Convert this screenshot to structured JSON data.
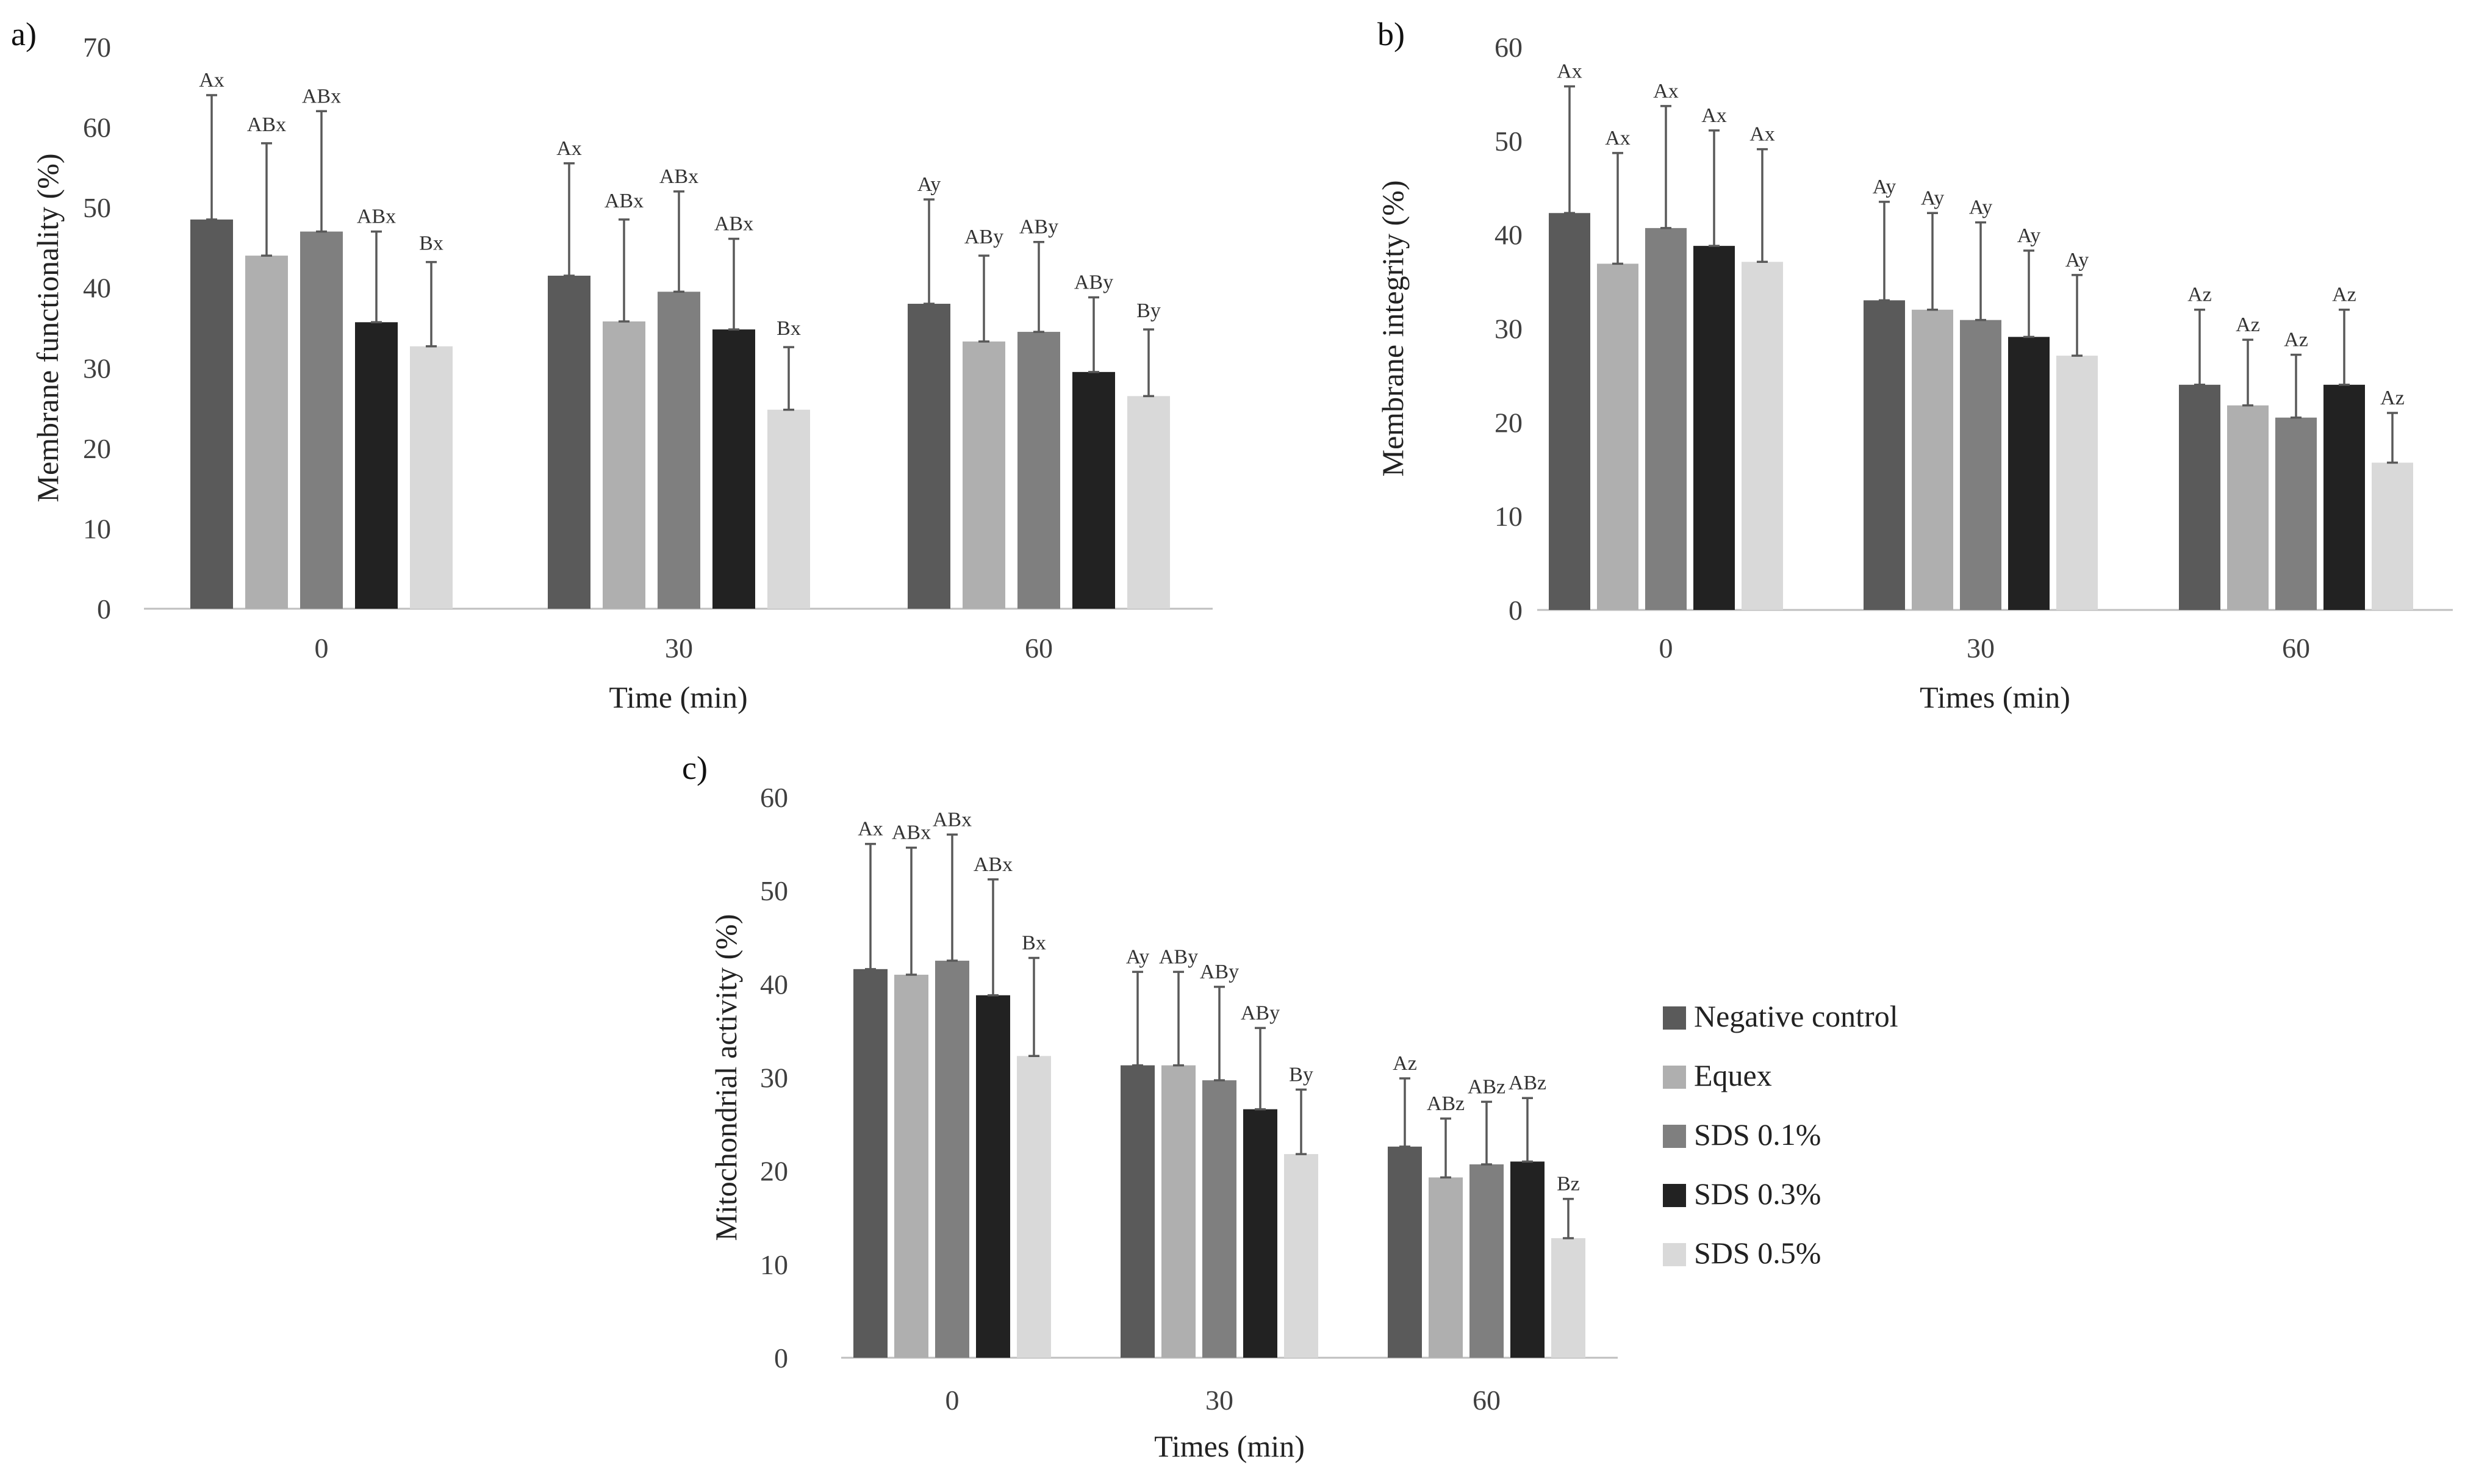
{
  "series_colors": [
    "#5a5a5a",
    "#afafaf",
    "#7f7f7f",
    "#222222",
    "#d9d9d9"
  ],
  "legend": [
    "Negative control",
    "Equex",
    "SDS 0.1%",
    "SDS 0.3%",
    "SDS 0.5%"
  ],
  "chart_data": [
    {
      "panel": "a)",
      "type": "bar",
      "xlabel": "Time (min)",
      "ylabel": "Membrane functionality (%)",
      "ylim": [
        0,
        70
      ],
      "yticks": [
        0,
        10,
        20,
        30,
        40,
        50,
        60,
        70
      ],
      "categories": [
        "0",
        "30",
        "60"
      ],
      "series": [
        {
          "name": "Negative control",
          "values": [
            48.5,
            41.5,
            38.0
          ],
          "errors": [
            15.5,
            14.0,
            13.0
          ],
          "labels": [
            "Ax",
            "Ax",
            "Ay"
          ]
        },
        {
          "name": "Equex",
          "values": [
            44.0,
            35.8,
            33.3
          ],
          "errors": [
            14.0,
            12.7,
            10.7
          ],
          "labels": [
            "ABx",
            "ABx",
            "ABy"
          ]
        },
        {
          "name": "SDS 0.1%",
          "values": [
            47.0,
            39.5,
            34.5
          ],
          "errors": [
            15.0,
            12.5,
            11.2
          ],
          "labels": [
            "ABx",
            "ABx",
            "ABy"
          ]
        },
        {
          "name": "SDS 0.3%",
          "values": [
            35.7,
            34.8,
            29.5
          ],
          "errors": [
            11.3,
            11.3,
            9.3
          ],
          "labels": [
            "ABx",
            "ABx",
            "ABy"
          ]
        },
        {
          "name": "SDS 0.5%",
          "values": [
            32.7,
            24.8,
            26.5
          ],
          "errors": [
            10.5,
            7.8,
            8.3
          ],
          "labels": [
            "Bx",
            "Bx",
            "By"
          ]
        }
      ]
    },
    {
      "panel": "b)",
      "type": "bar",
      "xlabel": "Times (min)",
      "ylabel": "Membrane integrity (%)",
      "ylim": [
        0,
        60
      ],
      "yticks": [
        0,
        10,
        20,
        30,
        40,
        50,
        60
      ],
      "categories": [
        "0",
        "30",
        "60"
      ],
      "series": [
        {
          "name": "Negative control",
          "values": [
            42.3,
            33.0,
            24.0
          ],
          "errors": [
            13.5,
            10.5,
            8.0
          ],
          "labels": [
            "Ax",
            "Ay",
            "Az"
          ]
        },
        {
          "name": "Equex",
          "values": [
            36.9,
            32.0,
            21.8
          ],
          "errors": [
            11.8,
            10.3,
            7.0
          ],
          "labels": [
            "Ax",
            "Ay",
            "Az"
          ]
        },
        {
          "name": "SDS 0.1%",
          "values": [
            40.7,
            30.9,
            20.5
          ],
          "errors": [
            13.0,
            10.4,
            6.7
          ],
          "labels": [
            "Ax",
            "Ay",
            "Az"
          ]
        },
        {
          "name": "SDS 0.3%",
          "values": [
            38.8,
            29.1,
            24.0
          ],
          "errors": [
            12.3,
            9.2,
            8.0
          ],
          "labels": [
            "Ax",
            "Ay",
            "Az"
          ]
        },
        {
          "name": "SDS 0.5%",
          "values": [
            37.1,
            27.1,
            15.7
          ],
          "errors": [
            12.0,
            8.6,
            5.3
          ],
          "labels": [
            "Ax",
            "Ay",
            "Az"
          ]
        }
      ]
    },
    {
      "panel": "c)",
      "type": "bar",
      "xlabel": "Times (min)",
      "ylabel": "Mitochondrial activity (%)",
      "ylim": [
        0,
        60
      ],
      "yticks": [
        0,
        10,
        20,
        30,
        40,
        50,
        60
      ],
      "categories": [
        "0",
        "30",
        "60"
      ],
      "series": [
        {
          "name": "Negative control",
          "values": [
            41.6,
            31.3,
            22.6
          ],
          "errors": [
            13.4,
            10.0,
            7.3
          ],
          "labels": [
            "Ax",
            "Ay",
            "Az"
          ]
        },
        {
          "name": "Equex",
          "values": [
            41.0,
            31.3,
            19.3
          ],
          "errors": [
            13.6,
            10.0,
            6.3
          ],
          "labels": [
            "ABx",
            "ABy",
            "ABz"
          ]
        },
        {
          "name": "SDS 0.1%",
          "values": [
            42.5,
            29.7,
            20.7
          ],
          "errors": [
            13.5,
            10.0,
            6.7
          ],
          "labels": [
            "ABx",
            "ABy",
            "ABz"
          ]
        },
        {
          "name": "SDS 0.3%",
          "values": [
            38.8,
            26.6,
            21.0
          ],
          "errors": [
            12.4,
            8.7,
            6.8
          ],
          "labels": [
            "ABx",
            "ABy",
            "ABz"
          ]
        },
        {
          "name": "SDS 0.5%",
          "values": [
            32.3,
            21.8,
            12.8
          ],
          "errors": [
            10.5,
            6.9,
            4.2
          ],
          "labels": [
            "Bx",
            "By",
            "Bz"
          ]
        }
      ]
    }
  ]
}
